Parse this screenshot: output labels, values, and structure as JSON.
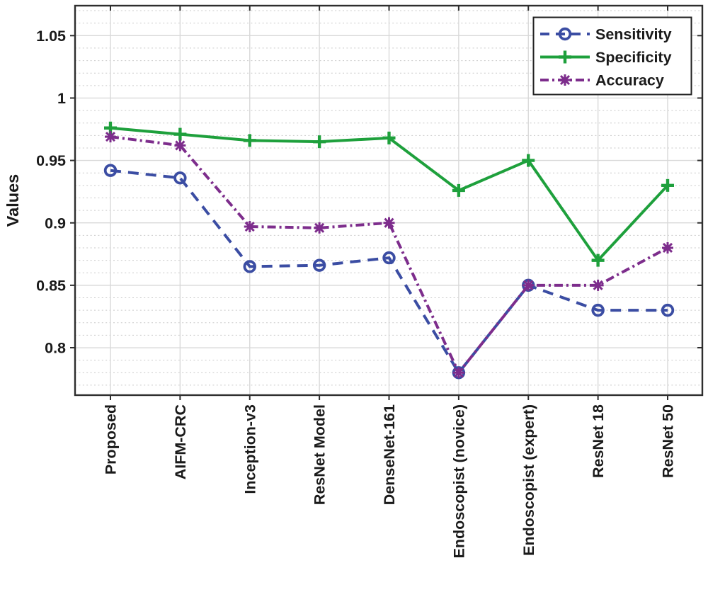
{
  "figure": {
    "background": "#ffffff",
    "axis_color": "#2e2e2e",
    "major_grid_color": "#d9d9d9",
    "minor_grid_color": "#c9c9c9",
    "tick_label_color": "#1a1a1a",
    "legend_border_color": "#222222",
    "legend_background": "#ffffff"
  },
  "chart_data": {
    "type": "line",
    "title": "",
    "xlabel": "",
    "ylabel": "Values",
    "categories": [
      "Proposed",
      "AIFM-CRC",
      "Inception-v3",
      "ResNet Model",
      "DenseNet-161",
      "Endoscopist (novice)",
      "Endoscopist (expert)",
      "ResNet 18",
      "ResNet 50"
    ],
    "series": [
      {
        "name": "Sensitivity",
        "color": "#3B4DA3",
        "line_style": "dashed",
        "marker": "circle",
        "values": [
          0.942,
          0.936,
          0.865,
          0.866,
          0.872,
          0.78,
          0.85,
          0.83,
          0.83
        ]
      },
      {
        "name": "Specificity",
        "color": "#1EA03C",
        "line_style": "solid",
        "marker": "plus",
        "values": [
          0.976,
          0.971,
          0.966,
          0.965,
          0.968,
          0.926,
          0.95,
          0.87,
          0.93
        ]
      },
      {
        "name": "Accuracy",
        "color": "#7D2D8C",
        "line_style": "dash-dot",
        "marker": "asterisk",
        "values": [
          0.969,
          0.962,
          0.897,
          0.896,
          0.9,
          0.78,
          0.85,
          0.85,
          0.88
        ]
      }
    ],
    "yticks": [
      0.8,
      0.85,
      0.9,
      0.95,
      1,
      1.05
    ],
    "ytick_labels": [
      "0.8",
      "0.85",
      "0.9",
      "0.95",
      "1",
      "1.05"
    ],
    "ylim": [
      0.762,
      1.074
    ],
    "minor_step": 0.01,
    "grid": true,
    "minor_grid": true,
    "legend_position": "top-right",
    "legend_entries": [
      "Sensitivity",
      "Specificity",
      "Accuracy"
    ]
  }
}
